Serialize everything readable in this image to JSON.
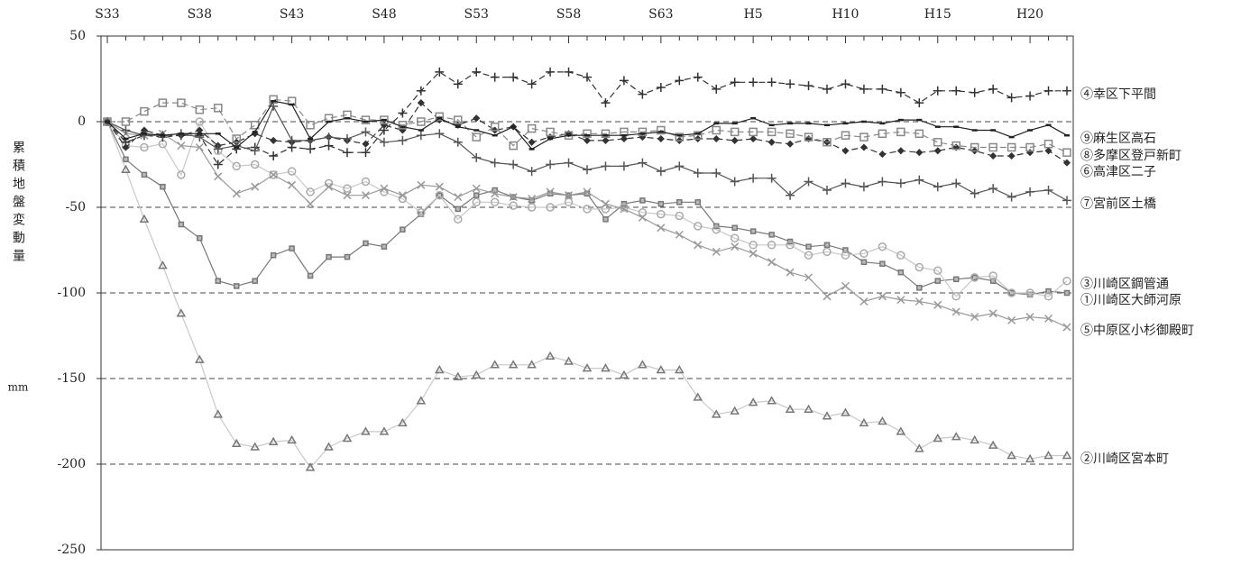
{
  "chart_data": {
    "type": "line",
    "ylabel": "累積地盤変動量",
    "yunit": "mm",
    "categories": [
      "S33",
      null,
      null,
      null,
      null,
      "S38",
      null,
      null,
      null,
      null,
      "S43",
      null,
      null,
      null,
      null,
      "S48",
      null,
      null,
      null,
      null,
      "S53",
      null,
      null,
      null,
      null,
      "S58",
      null,
      null,
      null,
      null,
      "S63",
      null,
      null,
      null,
      null,
      "H5",
      null,
      null,
      null,
      null,
      "H10",
      null,
      null,
      null,
      null,
      "H15",
      null,
      null,
      null,
      null,
      "H20",
      null,
      null
    ],
    "ylim": [
      50,
      -250
    ],
    "yticks": [
      50,
      0,
      -50,
      -100,
      -150,
      -200,
      -250
    ],
    "grid": true,
    "series": [
      {
        "name": "①川崎区大師河原",
        "color": "#777777",
        "marker": "smallsquare",
        "dash": false,
        "values": [
          0,
          -22,
          -31,
          -38,
          -60,
          -68,
          -93,
          -96,
          -93,
          -78,
          -74,
          -90,
          -79,
          -79,
          -71,
          -73,
          -63,
          -54,
          -43,
          -51,
          -43,
          -40,
          -44,
          -46,
          -42,
          -43,
          -42,
          -57,
          -48,
          -46,
          -48,
          -47,
          -47,
          -61,
          -62,
          -64,
          -66,
          -70,
          -73,
          -72,
          -75,
          -82,
          -83,
          -88,
          -97,
          -93,
          -92,
          -91,
          -93,
          -100,
          -101,
          -99,
          -100
        ]
      },
      {
        "name": "②川崎区宮本町",
        "color": "#777777",
        "marker": "triangle",
        "dash": false,
        "values": [
          0,
          -28,
          -57,
          -84,
          -112,
          -139,
          -171,
          -188,
          -190,
          -187,
          -186,
          -202,
          -190,
          -185,
          -181,
          -181,
          -176,
          -163,
          -145,
          -149,
          -148,
          -142,
          -142,
          -142,
          -137,
          -140,
          -144,
          -144,
          -148,
          -142,
          -145,
          -145,
          -161,
          -171,
          -169,
          -164,
          -163,
          -168,
          -168,
          -172,
          -170,
          -176,
          -175,
          -181,
          -191,
          -185,
          -184,
          -186,
          -189,
          -195,
          -197,
          -195,
          -195
        ]
      },
      {
        "name": "③川崎区鋼管通",
        "color": "#aaaaaa",
        "marker": "circle",
        "dash": false,
        "values": [
          0,
          -14,
          -15,
          -13,
          -31,
          0,
          -17,
          -26,
          -25,
          -31,
          -29,
          -41,
          -36,
          -39,
          -35,
          -41,
          -45,
          -53,
          -43,
          -57,
          -47,
          -47,
          -49,
          -50,
          -50,
          -47,
          -51,
          -51,
          -50,
          -53,
          -54,
          -55,
          -61,
          -63,
          -68,
          -72,
          -72,
          -72,
          -78,
          -76,
          -78,
          -77,
          -73,
          -78,
          -85,
          -87,
          -102,
          -91,
          -90,
          -100,
          -100,
          -102,
          -93
        ]
      },
      {
        "name": "④幸区下平間",
        "color": "#333333",
        "marker": "plus",
        "dash": true,
        "values": [
          0,
          -12,
          -8,
          -9,
          -8,
          -8,
          -25,
          -16,
          -15,
          -20,
          -15,
          -16,
          -14,
          -18,
          -18,
          -5,
          5,
          18,
          29,
          22,
          29,
          26,
          26,
          22,
          29,
          29,
          26,
          11,
          24,
          16,
          20,
          24,
          26,
          19,
          23,
          23,
          23,
          22,
          21,
          19,
          22,
          19,
          19,
          17,
          11,
          18,
          18,
          17,
          19,
          14,
          15,
          18,
          18
        ]
      },
      {
        "name": "⑤中原区小杉御殿町",
        "color": "#999999",
        "marker": "x",
        "dash": false,
        "values": [
          0,
          -7,
          -8,
          -7,
          -14,
          -15,
          -32,
          -42,
          -38,
          -31,
          -37,
          -48,
          -38,
          -43,
          -43,
          -39,
          -43,
          -37,
          -38,
          -44,
          -39,
          -42,
          -44,
          -45,
          -41,
          -43,
          -41,
          -48,
          -51,
          -56,
          -62,
          -66,
          -72,
          -76,
          -73,
          -77,
          -82,
          -88,
          -91,
          -102,
          -96,
          -105,
          -102,
          -104,
          -105,
          -107,
          -111,
          -114,
          -112,
          -116,
          -114,
          -115,
          -120
        ]
      },
      {
        "name": "⑥高津区二子",
        "color": "#333333",
        "marker": "diamond",
        "dash": true,
        "values": [
          0,
          -15,
          -5,
          -8,
          -8,
          -5,
          -14,
          -12,
          -7,
          -11,
          -12,
          -11,
          -9,
          -11,
          -13,
          -2,
          -5,
          11,
          1,
          -2,
          2,
          -5,
          -3,
          -12,
          -9,
          -7,
          -11,
          -11,
          -10,
          -9,
          -10,
          -11,
          -10,
          -10,
          -11,
          -10,
          -12,
          -13,
          -10,
          -12,
          -17,
          -15,
          -19,
          -17,
          -18,
          -17,
          -15,
          -17,
          -20,
          -20,
          -18,
          -17,
          -24
        ]
      },
      {
        "name": "⑦宮前区土橋",
        "color": "#555555",
        "marker": "plus",
        "dash": false,
        "values": [
          0,
          -5,
          -8,
          -8,
          -7,
          -9,
          -16,
          -14,
          -17,
          9,
          -11,
          -11,
          -9,
          -10,
          -6,
          -12,
          -11,
          -8,
          -7,
          -12,
          -21,
          -24,
          -25,
          -29,
          -25,
          -24,
          -28,
          -26,
          -26,
          -24,
          -29,
          -26,
          -30,
          -30,
          -35,
          -33,
          -33,
          -43,
          -35,
          -40,
          -36,
          -38,
          -35,
          -36,
          -34,
          -38,
          -36,
          -42,
          -39,
          -44,
          -41,
          -40,
          -46
        ]
      },
      {
        "name": "⑧多摩区登戸新町",
        "color": "#888888",
        "marker": "square",
        "dash": true,
        "values": [
          0,
          0,
          6,
          11,
          11,
          7,
          8,
          -10,
          -2,
          13,
          12,
          -2,
          2,
          4,
          1,
          1,
          -2,
          0,
          3,
          1,
          -9,
          -3,
          -14,
          -4,
          -6,
          -8,
          -7,
          -7,
          -6,
          -6,
          -5,
          -9,
          -8,
          -5,
          -6,
          -6,
          -6,
          -7,
          -9,
          -12,
          -8,
          -9,
          -7,
          -6,
          -7,
          -12,
          -14,
          -15,
          -15,
          -15,
          -15,
          -13,
          -18
        ]
      },
      {
        "name": "⑨麻生区高石",
        "color": "#222222",
        "marker": "dash",
        "dash": false,
        "values": [
          0,
          -10,
          -7,
          -8,
          -7,
          -7,
          -7,
          -15,
          -6,
          12,
          10,
          -10,
          0,
          2,
          0,
          1,
          -3,
          -5,
          2,
          -3,
          -5,
          -8,
          -3,
          -16,
          -10,
          -8,
          -8,
          -8,
          -8,
          -7,
          -6,
          -8,
          -7,
          -1,
          -1,
          2,
          -2,
          -1,
          -1,
          -2,
          -1,
          0,
          -1,
          1,
          1,
          -3,
          -3,
          -5,
          -5,
          -9,
          -5,
          -2,
          -8
        ]
      }
    ]
  }
}
